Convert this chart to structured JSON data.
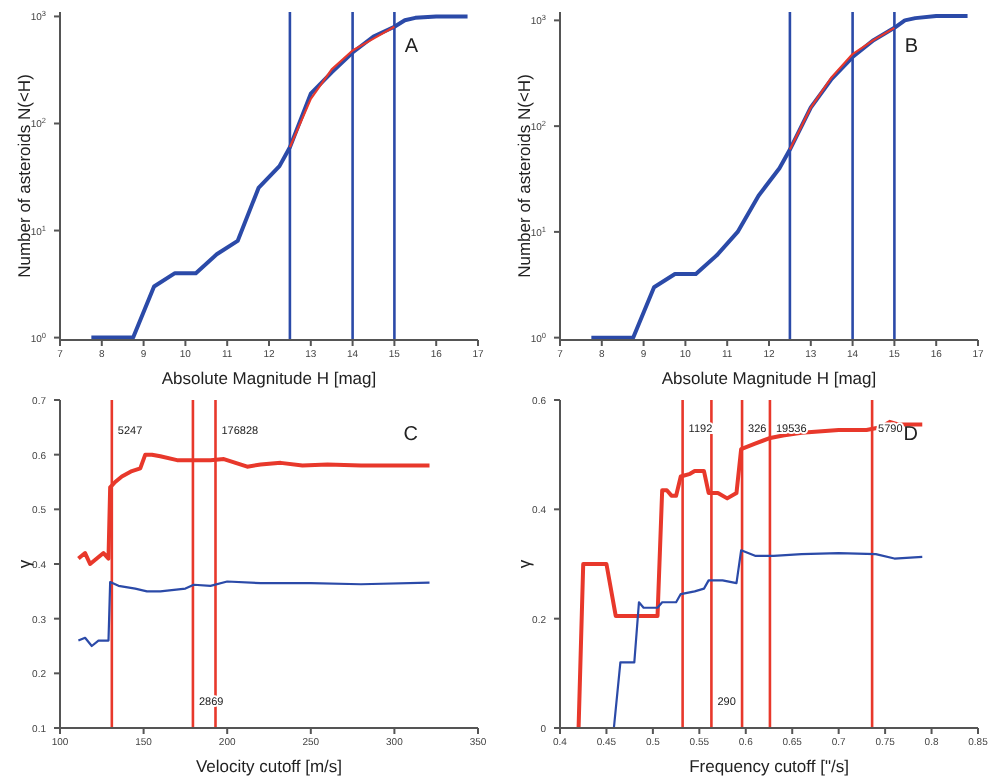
{
  "chart_data": [
    {
      "type": "line",
      "xlabel": "Absolute Magnitude H [mag]",
      "ylabel": "Number of asteroids N(<H)",
      "log": true,
      "xlim": [
        7,
        17
      ],
      "xticks": [
        7,
        8,
        9,
        10,
        11,
        12,
        13,
        14,
        15,
        16,
        17
      ],
      "ylim": [
        0.95,
        1100
      ],
      "yticks": [
        {
          "value": 1,
          "label": "10$^{0}$"
        },
        {
          "value": 10,
          "label": "10$^{1}$"
        },
        {
          "value": 100,
          "label": "10$^{2}$"
        },
        {
          "value": 1000,
          "label": "10$^{3}$"
        }
      ],
      "annotations": [
        "A"
      ],
      "series": [
        {
          "color": "#2b4aa8",
          "x": [
            7.75,
            8.75,
            9.25,
            9.75,
            10.25,
            10.75,
            11.25,
            11.75,
            12.25,
            12.5,
            13,
            13.5,
            14,
            14.5,
            15,
            15.25,
            15.5,
            16,
            16.75
          ],
          "values": [
            1,
            1,
            3,
            4,
            4,
            6,
            8,
            25,
            40,
            60,
            190,
            300,
            460,
            650,
            800,
            920,
            970,
            1000,
            1000
          ]
        },
        {
          "color": "#e8382b",
          "x": [
            12.5,
            13,
            13.5,
            14,
            14.5,
            15
          ],
          "values": [
            60,
            170,
            320,
            480,
            620,
            800
          ]
        }
      ],
      "ref_lines": [
        {
          "axis": "x",
          "value": 12.5,
          "color": "#2b4aa8"
        },
        {
          "axis": "x",
          "value": 14,
          "color": "#2b4aa8"
        },
        {
          "axis": "x",
          "value": 15,
          "color": "#2b4aa8"
        }
      ]
    },
    {
      "type": "line",
      "xlabel": "Absolute Magnitude H [mag]",
      "ylabel": "Number of asteroids N(<H)",
      "log": true,
      "xlim": [
        7,
        17
      ],
      "xticks": [
        7,
        8,
        9,
        10,
        11,
        12,
        13,
        14,
        15,
        16,
        17
      ],
      "ylim": [
        0.95,
        1200
      ],
      "yticks": [
        {
          "value": 1,
          "label": "10$^{0}$"
        },
        {
          "value": 10,
          "label": "10$^{1}$"
        },
        {
          "value": 100,
          "label": "10$^{2}$"
        },
        {
          "value": 1000,
          "label": "10$^{3}$"
        }
      ],
      "annotations": [
        "B"
      ],
      "series": [
        {
          "color": "#2b4aa8",
          "x": [
            7.75,
            8.75,
            9.25,
            9.75,
            10.25,
            10.75,
            11.25,
            11.75,
            12.25,
            12.5,
            13,
            13.5,
            14,
            14.5,
            15,
            15.25,
            15.5,
            16,
            16.75
          ],
          "values": [
            1,
            1,
            3,
            4,
            4,
            6,
            10,
            22,
            40,
            60,
            150,
            280,
            450,
            650,
            850,
            1000,
            1050,
            1100,
            1100
          ]
        },
        {
          "color": "#e8382b",
          "x": [
            12.5,
            13,
            13.5,
            14,
            14.5,
            15
          ],
          "values": [
            60,
            150,
            290,
            480,
            650,
            850
          ]
        }
      ],
      "ref_lines": [
        {
          "axis": "x",
          "value": 12.5,
          "color": "#2b4aa8"
        },
        {
          "axis": "x",
          "value": 14,
          "color": "#2b4aa8"
        },
        {
          "axis": "x",
          "value": 15,
          "color": "#2b4aa8"
        }
      ]
    },
    {
      "type": "line",
      "xlabel": "Velocity cutoff [m/s]",
      "ylabel": "γ",
      "xlim": [
        100,
        350
      ],
      "xticks": [
        100,
        150,
        200,
        250,
        300,
        350
      ],
      "ylim": [
        0.1,
        0.7
      ],
      "yticks": [
        0.1,
        0.2,
        0.3,
        0.4,
        0.5,
        0.6,
        0.7
      ],
      "annotations": [
        "C",
        {
          "text": "5247",
          "x": 131,
          "y": 0.645
        },
        {
          "text": "176828",
          "x": 193,
          "y": 0.645
        },
        {
          "text": "2869",
          "x": 179.5,
          "y": 0.15
        }
      ],
      "series": [
        {
          "color": "#e8382b",
          "x": [
            111,
            115,
            118,
            122,
            126,
            129,
            130,
            133,
            137,
            143,
            148,
            151,
            155,
            160,
            170,
            180,
            190,
            198,
            205,
            212,
            220,
            232,
            245,
            260,
            280,
            300,
            321
          ],
          "values": [
            0.41,
            0.42,
            0.4,
            0.41,
            0.42,
            0.41,
            0.54,
            0.55,
            0.56,
            0.57,
            0.575,
            0.6,
            0.6,
            0.597,
            0.59,
            0.59,
            0.59,
            0.592,
            0.585,
            0.578,
            0.582,
            0.585,
            0.58,
            0.582,
            0.58,
            0.58,
            0.58
          ]
        },
        {
          "color": "#2b4aa8",
          "x": [
            111,
            115,
            119,
            123,
            129,
            130,
            135,
            145,
            152,
            160,
            175,
            180,
            190,
            200,
            220,
            250,
            280,
            321
          ],
          "values": [
            0.26,
            0.265,
            0.25,
            0.26,
            0.26,
            0.367,
            0.36,
            0.355,
            0.35,
            0.35,
            0.355,
            0.362,
            0.36,
            0.368,
            0.365,
            0.365,
            0.363,
            0.366
          ]
        }
      ],
      "ref_lines": [
        {
          "axis": "x",
          "value": 131,
          "color": "#e8382b"
        },
        {
          "axis": "x",
          "value": 179.5,
          "color": "#e8382b"
        },
        {
          "axis": "x",
          "value": 193,
          "color": "#e8382b"
        }
      ]
    },
    {
      "type": "line",
      "xlabel": "Frequency cutoff [\"/s]",
      "ylabel": "γ",
      "xlim": [
        0.4,
        0.85
      ],
      "xticks": [
        0.4,
        0.45,
        0.5,
        0.55,
        0.6,
        0.65,
        0.7,
        0.75,
        0.8,
        0.85
      ],
      "ylim": [
        0,
        0.6
      ],
      "yticks": [
        0,
        0.2,
        0.4,
        0.6
      ],
      "annotations": [
        "D",
        {
          "text": "1192",
          "x": 0.532,
          "y": 0.548
        },
        {
          "text": "326",
          "x": 0.596,
          "y": 0.548
        },
        {
          "text": "19536",
          "x": 0.626,
          "y": 0.548
        },
        {
          "text": "5790",
          "x": 0.736,
          "y": 0.548
        },
        {
          "text": "290",
          "x": 0.563,
          "y": 0.05
        }
      ],
      "series": [
        {
          "color": "#e8382b",
          "x": [
            0.42,
            0.425,
            0.45,
            0.46,
            0.505,
            0.51,
            0.515,
            0.52,
            0.525,
            0.53,
            0.54,
            0.545,
            0.555,
            0.56,
            0.57,
            0.58,
            0.59,
            0.595,
            0.61,
            0.625,
            0.64,
            0.66,
            0.7,
            0.73,
            0.745,
            0.755,
            0.765,
            0.79
          ],
          "values": [
            0,
            0.3,
            0.3,
            0.205,
            0.205,
            0.435,
            0.435,
            0.425,
            0.425,
            0.46,
            0.465,
            0.47,
            0.47,
            0.43,
            0.43,
            0.42,
            0.43,
            0.51,
            0.52,
            0.53,
            0.535,
            0.54,
            0.545,
            0.545,
            0.55,
            0.56,
            0.555,
            0.555
          ]
        },
        {
          "color": "#2b4aa8",
          "x": [
            0.458,
            0.465,
            0.48,
            0.485,
            0.49,
            0.505,
            0.51,
            0.525,
            0.53,
            0.545,
            0.555,
            0.56,
            0.575,
            0.59,
            0.595,
            0.61,
            0.63,
            0.66,
            0.7,
            0.74,
            0.76,
            0.79
          ],
          "values": [
            0,
            0.12,
            0.12,
            0.23,
            0.22,
            0.22,
            0.23,
            0.23,
            0.245,
            0.25,
            0.255,
            0.27,
            0.27,
            0.265,
            0.325,
            0.315,
            0.315,
            0.318,
            0.32,
            0.318,
            0.31,
            0.313
          ]
        }
      ],
      "ref_lines": [
        {
          "axis": "x",
          "value": 0.532,
          "color": "#e8382b"
        },
        {
          "axis": "x",
          "value": 0.563,
          "color": "#e8382b"
        },
        {
          "axis": "x",
          "value": 0.596,
          "color": "#e8382b"
        },
        {
          "axis": "x",
          "value": 0.626,
          "color": "#e8382b"
        },
        {
          "axis": "x",
          "value": 0.736,
          "color": "#e8382b"
        }
      ]
    }
  ]
}
